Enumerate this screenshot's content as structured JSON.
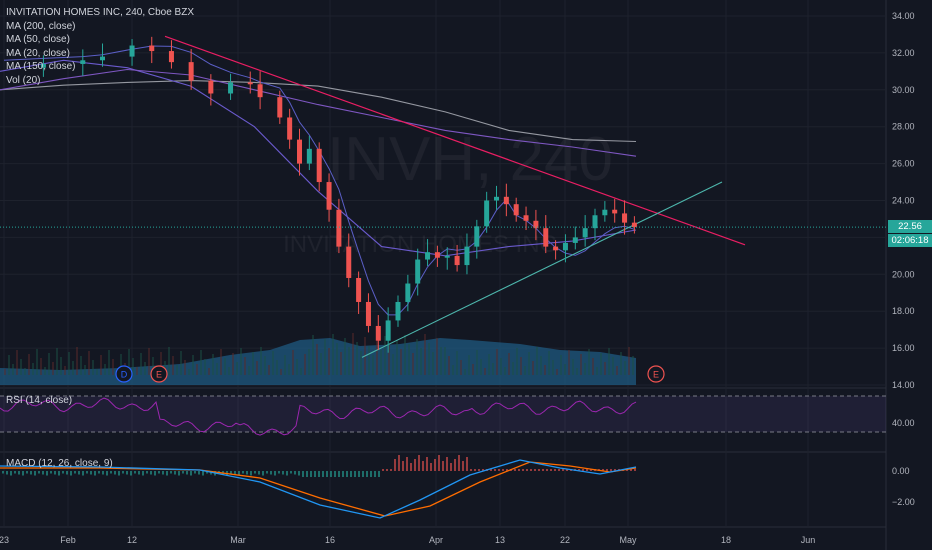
{
  "header": {
    "title": "INVITATION HOMES INC, 240, Cboe BZX",
    "indicators": [
      "MA (200, close)",
      "MA (50, close)",
      "MA (20, close)",
      "MA (150, close)",
      "Vol (20)"
    ]
  },
  "watermark": {
    "symbol": "INVH, 240",
    "name": "INVITATION HOMES INC"
  },
  "price_badge": {
    "price": "22.56",
    "countdown": "02:06:18"
  },
  "rsi": {
    "label": "RSI (14, close)",
    "tick": "40.00"
  },
  "macd": {
    "label": "MACD (12, 26, close, 9)",
    "ticks": [
      "0.00",
      "−2.00"
    ]
  },
  "events": [
    "D",
    "E",
    "E"
  ],
  "colors": {
    "up": "#26a69a",
    "down": "#ef5350",
    "ma200": "#9598a1",
    "ma50": "#6a5acd",
    "ma20": "#5b5fc7",
    "ma150": "#7e57c2",
    "trend_down": "#e91e63",
    "trend_up": "#4db6ac",
    "volume": "#1f5a80",
    "rsi": "#9c27b0",
    "macd": "#2196f3",
    "signal": "#ff6d00"
  },
  "chart_data": {
    "type": "candlestick",
    "ylim": [
      14,
      34
    ],
    "y_ticks": [
      "34.00",
      "32.00",
      "30.00",
      "28.00",
      "26.00",
      "24.00",
      "22.00",
      "20.00",
      "18.00",
      "16.00",
      "14.00"
    ],
    "x_ticks": [
      "23",
      "Feb",
      "12",
      "Mar",
      "16",
      "Apr",
      "13",
      "22",
      "May",
      "18",
      "Jun"
    ],
    "close_path": [
      [
        0,
        31.2
      ],
      [
        4,
        31.4
      ],
      [
        8,
        31.6
      ],
      [
        10,
        31.8
      ],
      [
        13,
        32.4
      ],
      [
        15,
        32.1
      ],
      [
        17,
        31.5
      ],
      [
        19,
        30.5
      ],
      [
        21,
        29.8
      ],
      [
        23,
        30.4
      ],
      [
        25,
        30.3
      ],
      [
        26,
        29.6
      ],
      [
        28,
        28.5
      ],
      [
        29,
        27.3
      ],
      [
        30,
        26.0
      ],
      [
        31,
        26.8
      ],
      [
        32,
        25.0
      ],
      [
        33,
        23.5
      ],
      [
        34,
        21.5
      ],
      [
        35,
        19.8
      ],
      [
        36,
        18.5
      ],
      [
        37,
        17.2
      ],
      [
        38,
        16.4
      ],
      [
        39,
        17.5
      ],
      [
        40,
        18.5
      ],
      [
        41,
        19.5
      ],
      [
        42,
        20.8
      ],
      [
        43,
        21.2
      ],
      [
        44,
        20.9
      ],
      [
        45,
        21.0
      ],
      [
        46,
        20.5
      ],
      [
        47,
        21.5
      ],
      [
        48,
        22.6
      ],
      [
        49,
        24.0
      ],
      [
        50,
        24.2
      ],
      [
        51,
        23.8
      ],
      [
        52,
        23.2
      ],
      [
        53,
        22.9
      ],
      [
        54,
        22.5
      ],
      [
        55,
        21.5
      ],
      [
        56,
        21.3
      ],
      [
        57,
        21.7
      ],
      [
        58,
        22.0
      ],
      [
        59,
        22.5
      ],
      [
        60,
        23.2
      ],
      [
        61,
        23.5
      ],
      [
        62,
        23.3
      ],
      [
        63,
        22.8
      ],
      [
        64,
        22.56
      ]
    ],
    "ma": [
      {
        "name": "MA (200, close)",
        "values": [
          30.0,
          30.25,
          30.4,
          30.5,
          30.4,
          30.2,
          29.6,
          28.8,
          27.8,
          27.3,
          27.2
        ]
      },
      {
        "name": "MA (50, close)",
        "values": [
          31.0,
          31.6,
          31.2,
          30.2,
          28.0,
          24.5,
          21.5,
          21.0,
          21.5,
          21.8,
          22.4
        ]
      },
      {
        "name": "MA (150, close)",
        "values": [
          30.0,
          30.6,
          31.1,
          30.8,
          30.0,
          29.2,
          28.5,
          27.8,
          27.3,
          26.9,
          26.4
        ]
      }
    ],
    "trendlines": [
      {
        "from": [
          "Feb 12",
          32.9
        ],
        "to": [
          "May 18",
          21.6
        ]
      },
      {
        "from": [
          "Mar 20",
          15.5
        ],
        "to": [
          "May 18",
          25.0
        ]
      }
    ],
    "rsi_ylim": [
      20,
      80
    ],
    "macd_ylim": [
      -3.5,
      1.5
    ]
  }
}
